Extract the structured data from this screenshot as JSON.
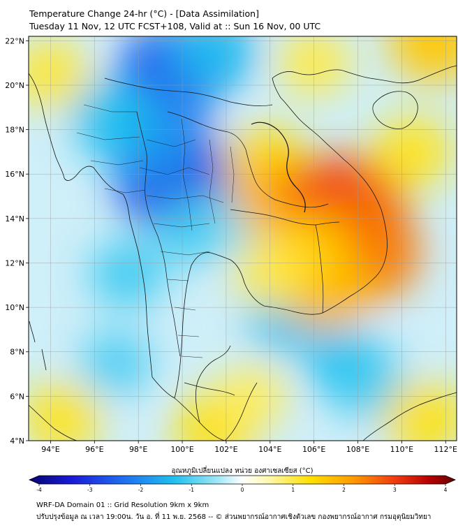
{
  "header": {
    "title_line1": "Temperature Change 24-hr (°C) - [Data Assimilation]",
    "title_line2": "Tuesday 11 Nov, 12 UTC FCST+108, Valid at :: Sun 16 Nov, 00 UTC"
  },
  "map": {
    "lat_labels": [
      "22°N",
      "20°N",
      "18°N",
      "16°N",
      "14°N",
      "12°N",
      "10°N",
      "8°N",
      "6°N",
      "4°N"
    ],
    "lat_values": [
      22,
      20,
      18,
      16,
      14,
      12,
      10,
      8,
      6,
      4
    ],
    "lon_labels": [
      "94°E",
      "96°E",
      "98°E",
      "100°E",
      "102°E",
      "104°E",
      "106°E",
      "108°E",
      "110°E",
      "112°E"
    ],
    "lon_values": [
      94,
      96,
      98,
      100,
      102,
      104,
      106,
      108,
      110,
      112
    ],
    "lat_range": [
      4,
      22.2
    ],
    "lon_range": [
      93,
      112.5
    ],
    "anomaly_blobs": [
      {
        "lon": 99.5,
        "lat": 20.5,
        "value": -2.3
      },
      {
        "lon": 101.5,
        "lat": 21.5,
        "value": -1.4
      },
      {
        "lon": 99.7,
        "lat": 15.8,
        "value": -2.6
      },
      {
        "lon": 98.5,
        "lat": 17.5,
        "value": -1.8
      },
      {
        "lon": 96.8,
        "lat": 18.5,
        "value": -1.3
      },
      {
        "lon": 100.5,
        "lat": 13.5,
        "value": -1.1
      },
      {
        "lon": 97.5,
        "lat": 11.5,
        "value": -1.1
      },
      {
        "lon": 102.5,
        "lat": 14.0,
        "value": -0.8
      },
      {
        "lon": 104.8,
        "lat": 9.6,
        "value": -1.3
      },
      {
        "lon": 107.5,
        "lat": 7.4,
        "value": -1.3
      },
      {
        "lon": 108.5,
        "lat": 6.5,
        "value": -1.1
      },
      {
        "lon": 97.0,
        "lat": 7.5,
        "value": -1.0
      },
      {
        "lon": 103.8,
        "lat": 16.5,
        "value": 1.3
      },
      {
        "lon": 104.5,
        "lat": 15.0,
        "value": 1.8
      },
      {
        "lon": 107.3,
        "lat": 14.3,
        "value": 2.8
      },
      {
        "lon": 108.2,
        "lat": 12.5,
        "value": 2.4
      },
      {
        "lon": 106.5,
        "lat": 11.0,
        "value": 1.8
      },
      {
        "lon": 105.5,
        "lat": 12.5,
        "value": 1.5
      },
      {
        "lon": 111.5,
        "lat": 22.0,
        "value": 1.6
      },
      {
        "lon": 94.0,
        "lat": 20.5,
        "value": 1.1
      },
      {
        "lon": 106.0,
        "lat": 21.0,
        "value": 1.0
      },
      {
        "lon": 110.5,
        "lat": 17.0,
        "value": 1.2
      },
      {
        "lon": 94.5,
        "lat": 5.0,
        "value": 1.2
      },
      {
        "lon": 101.5,
        "lat": 4.6,
        "value": 1.3
      },
      {
        "lon": 111.0,
        "lat": 5.0,
        "value": 1.3
      },
      {
        "lon": 103.2,
        "lat": 6.0,
        "value": 0.9
      },
      {
        "lon": 104.0,
        "lat": 11.5,
        "value": 1.0
      }
    ]
  },
  "colorbar": {
    "label": "อุณหภูมิเปลี่ยนแปลง หน่วย องศาเซลเซียส (°C)",
    "ticks": [
      "-4",
      "-3",
      "-2",
      "-1",
      "0",
      "1",
      "2",
      "3",
      "4"
    ],
    "tick_values": [
      -4,
      -3,
      -2,
      -1,
      0,
      1,
      2,
      3,
      4
    ],
    "range": [
      -4,
      4
    ]
  },
  "footer": {
    "line1": "WRF-DA Domain 01 :: Grid Resolution 9km x 9km",
    "line2": "ปรับปรุงข้อมูล ณ เวลา 19:00น. วัน อ. ที่ 11 พ.ย. 2568 -- © ส่วนพยากรณ์อากาศเชิงตัวเลข กองพยากรณ์อากาศ กรมอุตุนิยมวิทยา"
  },
  "colors": {
    "background": "#ffffff",
    "coastline": "#111111",
    "border": "#1a1a1a",
    "grid": "#9a9a9a"
  }
}
